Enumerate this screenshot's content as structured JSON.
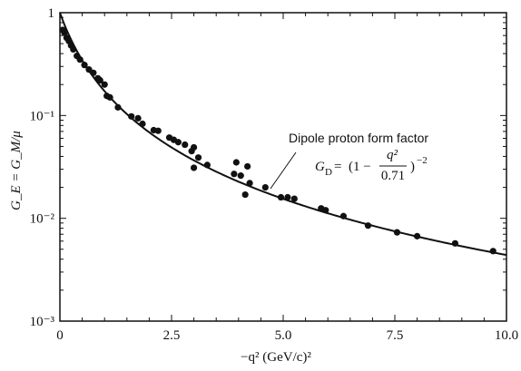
{
  "chart_data": {
    "type": "scatter",
    "title": "",
    "xlabel": "−q² (GeV/c)²",
    "ylabel": "G_E = G_M/μ",
    "xlim": [
      0,
      10
    ],
    "ylim": [
      0.001,
      1
    ],
    "yscale": "log",
    "grid": false,
    "x_ticks": [
      {
        "value": 0,
        "label": "0"
      },
      {
        "value": 2.5,
        "label": "2.5"
      },
      {
        "value": 5,
        "label": "5.0"
      },
      {
        "value": 7.5,
        "label": "7.5"
      },
      {
        "value": 10,
        "label": "10.0"
      }
    ],
    "y_ticks": [
      {
        "value": 1,
        "label": "1"
      },
      {
        "value": 0.1,
        "label": "10⁻¹"
      },
      {
        "value": 0.01,
        "label": "10⁻²"
      },
      {
        "value": 0.001,
        "label": "10⁻³"
      }
    ],
    "series": [
      {
        "name": "",
        "kind": "points",
        "points": [
          {
            "x": 0.06,
            "y": 0.68
          },
          {
            "x": 0.1,
            "y": 0.64
          },
          {
            "x": 0.15,
            "y": 0.57
          },
          {
            "x": 0.2,
            "y": 0.53
          },
          {
            "x": 0.25,
            "y": 0.48
          },
          {
            "x": 0.3,
            "y": 0.44
          },
          {
            "x": 0.38,
            "y": 0.38
          },
          {
            "x": 0.45,
            "y": 0.35
          },
          {
            "x": 0.55,
            "y": 0.31
          },
          {
            "x": 0.65,
            "y": 0.28
          },
          {
            "x": 0.75,
            "y": 0.26
          },
          {
            "x": 0.85,
            "y": 0.23
          },
          {
            "x": 0.9,
            "y": 0.22
          },
          {
            "x": 1.0,
            "y": 0.2
          },
          {
            "x": 1.05,
            "y": 0.155
          },
          {
            "x": 1.12,
            "y": 0.15
          },
          {
            "x": 1.3,
            "y": 0.12
          },
          {
            "x": 1.6,
            "y": 0.098
          },
          {
            "x": 1.75,
            "y": 0.094
          },
          {
            "x": 1.85,
            "y": 0.083
          },
          {
            "x": 2.1,
            "y": 0.072
          },
          {
            "x": 2.2,
            "y": 0.071
          },
          {
            "x": 2.45,
            "y": 0.061
          },
          {
            "x": 2.55,
            "y": 0.058
          },
          {
            "x": 2.65,
            "y": 0.055
          },
          {
            "x": 2.8,
            "y": 0.052
          },
          {
            "x": 2.95,
            "y": 0.045
          },
          {
            "x": 3.0,
            "y": 0.049
          },
          {
            "x": 3.0,
            "y": 0.031
          },
          {
            "x": 3.1,
            "y": 0.039
          },
          {
            "x": 3.3,
            "y": 0.033
          },
          {
            "x": 3.9,
            "y": 0.027
          },
          {
            "x": 3.95,
            "y": 0.035
          },
          {
            "x": 4.05,
            "y": 0.026
          },
          {
            "x": 4.2,
            "y": 0.032
          },
          {
            "x": 4.15,
            "y": 0.017
          },
          {
            "x": 4.25,
            "y": 0.022
          },
          {
            "x": 4.6,
            "y": 0.02
          },
          {
            "x": 4.95,
            "y": 0.016
          },
          {
            "x": 5.1,
            "y": 0.016
          },
          {
            "x": 5.25,
            "y": 0.0155
          },
          {
            "x": 5.85,
            "y": 0.0125
          },
          {
            "x": 5.95,
            "y": 0.012
          },
          {
            "x": 6.35,
            "y": 0.0105
          },
          {
            "x": 6.9,
            "y": 0.0085
          },
          {
            "x": 7.55,
            "y": 0.0073
          },
          {
            "x": 8.0,
            "y": 0.0067
          },
          {
            "x": 8.85,
            "y": 0.0057
          },
          {
            "x": 9.7,
            "y": 0.0048
          }
        ]
      },
      {
        "name": "Dipole proton form factor",
        "kind": "curve",
        "formula": "G_D = (1 + Q2/0.71)^-2",
        "x_range": [
          0,
          10
        ]
      }
    ],
    "annotation": {
      "text": "Dipole proton form factor",
      "formula_prefix": "G",
      "formula_sub": "D",
      "formula_eq": "=",
      "formula_open": "(1 −",
      "formula_num": "q²",
      "formula_den": "0.71",
      "formula_close": ")",
      "formula_exp": "−2"
    }
  }
}
